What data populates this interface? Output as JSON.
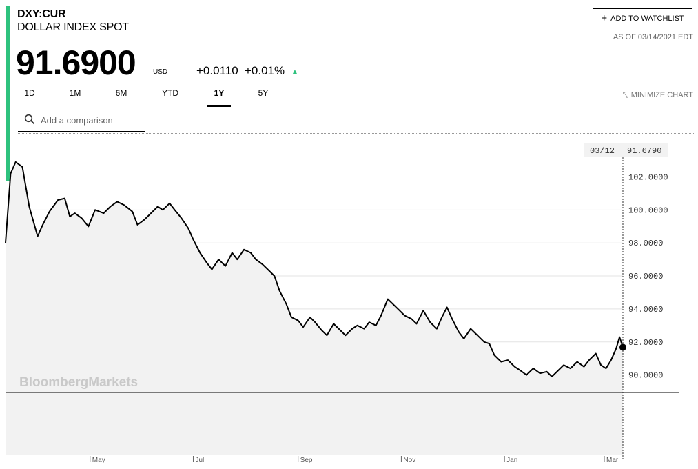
{
  "header": {
    "ticker": "DXY:CUR",
    "name": "DOLLAR INDEX SPOT",
    "price": "91.6900",
    "currency": "USD",
    "change": "+0.0110",
    "change_pct": "+0.01%",
    "watchlist_label": "ADD TO WATCHLIST",
    "as_of": "AS OF 03/14/2021 EDT"
  },
  "colors": {
    "accent": "#2ec27e",
    "area_fill": "#f2f2f2",
    "line": "#000000"
  },
  "tabs": [
    {
      "label": "1D",
      "active": false
    },
    {
      "label": "1M",
      "active": false
    },
    {
      "label": "6M",
      "active": false
    },
    {
      "label": "YTD",
      "active": false
    },
    {
      "label": "1Y",
      "active": true
    },
    {
      "label": "5Y",
      "active": false
    }
  ],
  "minimize_label": "MINIMIZE CHART",
  "search": {
    "placeholder": "Add a comparison",
    "value": ""
  },
  "watermark": "BloombergMarkets",
  "chart_data": {
    "type": "area",
    "title": "",
    "xlabel": "",
    "ylabel": "",
    "ylim": [
      88.94,
      103.9
    ],
    "y_ticks": [
      "102.0000",
      "100.0000",
      "98.0000",
      "96.0000",
      "94.0000",
      "92.0000",
      "90.0000"
    ],
    "y_tick_values": [
      102,
      100,
      98,
      96,
      94,
      92,
      90
    ],
    "x_ticks": [
      "May",
      "Jul",
      "Sep",
      "Nov",
      "Jan",
      "Mar"
    ],
    "x_tick_dates": [
      "2020-05-01",
      "2020-07-01",
      "2020-09-01",
      "2020-11-01",
      "2021-01-01",
      "2021-03-01"
    ],
    "x_range": [
      "2020-03-12",
      "2021-03-12"
    ],
    "grid": true,
    "crosshair": {
      "date": "03/12",
      "value": "91.6790"
    },
    "series": [
      {
        "values": [
          [
            "2020-03-12",
            98.0
          ],
          [
            "2020-03-15",
            102.2
          ],
          [
            "2020-03-18",
            102.9
          ],
          [
            "2020-03-22",
            102.6
          ],
          [
            "2020-03-26",
            100.2
          ],
          [
            "2020-03-31",
            98.4
          ],
          [
            "2020-04-03",
            99.1
          ],
          [
            "2020-04-07",
            99.9
          ],
          [
            "2020-04-12",
            100.6
          ],
          [
            "2020-04-16",
            100.7
          ],
          [
            "2020-04-19",
            99.6
          ],
          [
            "2020-04-22",
            99.8
          ],
          [
            "2020-04-26",
            99.5
          ],
          [
            "2020-04-30",
            99.0
          ],
          [
            "2020-05-04",
            100.0
          ],
          [
            "2020-05-09",
            99.8
          ],
          [
            "2020-05-13",
            100.2
          ],
          [
            "2020-05-17",
            100.5
          ],
          [
            "2020-05-21",
            100.3
          ],
          [
            "2020-05-26",
            99.9
          ],
          [
            "2020-05-29",
            99.1
          ],
          [
            "2020-06-02",
            99.4
          ],
          [
            "2020-06-06",
            99.8
          ],
          [
            "2020-06-10",
            100.2
          ],
          [
            "2020-06-13",
            100.0
          ],
          [
            "2020-06-17",
            100.4
          ],
          [
            "2020-06-20",
            100.0
          ],
          [
            "2020-06-24",
            99.5
          ],
          [
            "2020-06-28",
            98.9
          ],
          [
            "2020-07-01",
            98.2
          ],
          [
            "2020-07-05",
            97.4
          ],
          [
            "2020-07-09",
            96.8
          ],
          [
            "2020-07-12",
            96.4
          ],
          [
            "2020-07-16",
            97.0
          ],
          [
            "2020-07-20",
            96.6
          ],
          [
            "2020-07-24",
            97.4
          ],
          [
            "2020-07-27",
            97.0
          ],
          [
            "2020-07-31",
            97.6
          ],
          [
            "2020-08-04",
            97.4
          ],
          [
            "2020-08-07",
            97.0
          ],
          [
            "2020-08-11",
            96.7
          ],
          [
            "2020-08-14",
            96.4
          ],
          [
            "2020-08-18",
            96.0
          ],
          [
            "2020-08-21",
            95.1
          ],
          [
            "2020-08-25",
            94.3
          ],
          [
            "2020-08-28",
            93.5
          ],
          [
            "2020-09-01",
            93.3
          ],
          [
            "2020-09-04",
            92.9
          ],
          [
            "2020-09-08",
            93.5
          ],
          [
            "2020-09-11",
            93.2
          ],
          [
            "2020-09-15",
            92.7
          ],
          [
            "2020-09-18",
            92.4
          ],
          [
            "2020-09-22",
            93.1
          ],
          [
            "2020-09-25",
            92.8
          ],
          [
            "2020-09-29",
            92.4
          ],
          [
            "2020-10-03",
            92.8
          ],
          [
            "2020-10-06",
            93.0
          ],
          [
            "2020-10-10",
            92.8
          ],
          [
            "2020-10-13",
            93.2
          ],
          [
            "2020-10-17",
            93.0
          ],
          [
            "2020-10-20",
            93.6
          ],
          [
            "2020-10-24",
            94.6
          ],
          [
            "2020-10-27",
            94.3
          ],
          [
            "2020-10-31",
            93.9
          ],
          [
            "2020-11-03",
            93.6
          ],
          [
            "2020-11-07",
            93.4
          ],
          [
            "2020-11-10",
            93.1
          ],
          [
            "2020-11-14",
            93.9
          ],
          [
            "2020-11-18",
            93.2
          ],
          [
            "2020-11-22",
            92.8
          ],
          [
            "2020-11-25",
            93.5
          ],
          [
            "2020-11-28",
            94.1
          ],
          [
            "2020-12-01",
            93.4
          ],
          [
            "2020-12-05",
            92.6
          ],
          [
            "2020-12-08",
            92.2
          ],
          [
            "2020-12-12",
            92.8
          ],
          [
            "2020-12-16",
            92.4
          ],
          [
            "2020-12-20",
            92.0
          ],
          [
            "2020-12-23",
            91.9
          ],
          [
            "2020-12-26",
            91.2
          ],
          [
            "2020-12-30",
            90.8
          ],
          [
            "2021-01-03",
            90.9
          ],
          [
            "2021-01-07",
            90.5
          ],
          [
            "2021-01-10",
            90.3
          ],
          [
            "2021-01-14",
            90.0
          ],
          [
            "2021-01-18",
            90.4
          ],
          [
            "2021-01-22",
            90.1
          ],
          [
            "2021-01-26",
            90.2
          ],
          [
            "2021-01-29",
            89.9
          ],
          [
            "2021-02-02",
            90.3
          ],
          [
            "2021-02-05",
            90.6
          ],
          [
            "2021-02-09",
            90.4
          ],
          [
            "2021-02-13",
            90.8
          ],
          [
            "2021-02-17",
            90.5
          ],
          [
            "2021-02-20",
            90.9
          ],
          [
            "2021-02-24",
            91.3
          ],
          [
            "2021-02-27",
            90.6
          ],
          [
            "2021-03-02",
            90.4
          ],
          [
            "2021-03-05",
            90.9
          ],
          [
            "2021-03-08",
            91.6
          ],
          [
            "2021-03-10",
            92.3
          ],
          [
            "2021-03-12",
            91.68
          ]
        ]
      }
    ]
  }
}
